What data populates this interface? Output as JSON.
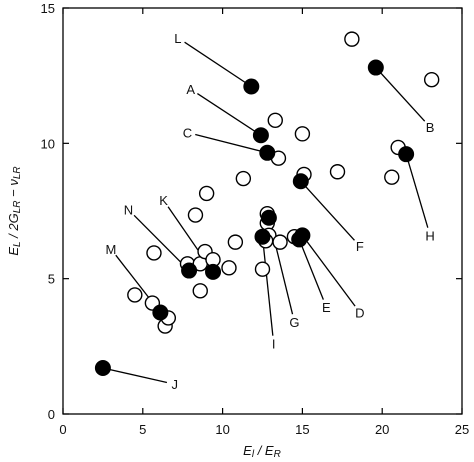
{
  "chart_data": {
    "type": "scatter",
    "xlabel": "E_l / E_R",
    "ylabel": "E_L / 2G_LR − ν_LR",
    "xlim": [
      0,
      25
    ],
    "ylim": [
      0,
      15
    ],
    "x_ticks": [
      0,
      5,
      10,
      15,
      20,
      25
    ],
    "y_ticks": [
      0,
      5,
      10,
      15
    ],
    "x_tick_labels": [
      "0",
      "5",
      "10",
      "15",
      "20",
      "25"
    ],
    "y_tick_labels": [
      "0",
      "5",
      "10",
      "15"
    ],
    "grid": false,
    "series": [
      {
        "marker": "open-circle",
        "points": [
          {
            "x": 4.5,
            "y": 4.4
          },
          {
            "x": 5.6,
            "y": 4.1
          },
          {
            "x": 6.4,
            "y": 3.25
          },
          {
            "x": 6.6,
            "y": 3.55
          },
          {
            "x": 5.7,
            "y": 5.95
          },
          {
            "x": 7.8,
            "y": 5.55
          },
          {
            "x": 8.6,
            "y": 4.55
          },
          {
            "x": 8.3,
            "y": 7.35
          },
          {
            "x": 9.0,
            "y": 8.15
          },
          {
            "x": 8.6,
            "y": 5.55
          },
          {
            "x": 8.9,
            "y": 6.0
          },
          {
            "x": 9.4,
            "y": 5.7
          },
          {
            "x": 10.4,
            "y": 5.4
          },
          {
            "x": 10.8,
            "y": 6.35
          },
          {
            "x": 11.3,
            "y": 8.7
          },
          {
            "x": 12.5,
            "y": 5.35
          },
          {
            "x": 12.8,
            "y": 7.4
          },
          {
            "x": 12.8,
            "y": 7.05
          },
          {
            "x": 12.9,
            "y": 6.6
          },
          {
            "x": 12.7,
            "y": 6.4
          },
          {
            "x": 13.5,
            "y": 9.45
          },
          {
            "x": 13.3,
            "y": 10.85
          },
          {
            "x": 15.0,
            "y": 10.35
          },
          {
            "x": 15.1,
            "y": 8.85
          },
          {
            "x": 13.6,
            "y": 6.35
          },
          {
            "x": 14.5,
            "y": 6.55
          },
          {
            "x": 17.2,
            "y": 8.95
          },
          {
            "x": 18.1,
            "y": 13.85
          },
          {
            "x": 20.6,
            "y": 8.75
          },
          {
            "x": 21.0,
            "y": 9.85
          },
          {
            "x": 23.1,
            "y": 12.35
          }
        ]
      },
      {
        "marker": "filled-circle",
        "points": [
          {
            "x": 2.5,
            "y": 1.7,
            "label": "J"
          },
          {
            "x": 6.1,
            "y": 3.75,
            "label": "M"
          },
          {
            "x": 7.9,
            "y": 5.3,
            "label": "N"
          },
          {
            "x": 9.4,
            "y": 5.25,
            "label": "K"
          },
          {
            "x": 11.8,
            "y": 12.1,
            "label": "L"
          },
          {
            "x": 12.4,
            "y": 10.3,
            "label": "A"
          },
          {
            "x": 12.8,
            "y": 9.65,
            "label": "C"
          },
          {
            "x": 12.5,
            "y": 6.55,
            "label": "I"
          },
          {
            "x": 12.9,
            "y": 7.25,
            "label": "G"
          },
          {
            "x": 14.8,
            "y": 6.45,
            "label": "E"
          },
          {
            "x": 15.0,
            "y": 6.6,
            "label": "D"
          },
          {
            "x": 14.9,
            "y": 8.6,
            "label": "F"
          },
          {
            "x": 19.6,
            "y": 12.8,
            "label": "B"
          },
          {
            "x": 21.5,
            "y": 9.6,
            "label": "H"
          }
        ]
      }
    ],
    "annotations": [
      {
        "text": "L",
        "anchor_x": 11.8,
        "anchor_y": 12.1,
        "text_x": 7.2,
        "text_y": 13.9
      },
      {
        "text": "A",
        "anchor_x": 12.4,
        "anchor_y": 10.3,
        "text_x": 8.0,
        "text_y": 12.0
      },
      {
        "text": "C",
        "anchor_x": 12.8,
        "anchor_y": 9.65,
        "text_x": 7.8,
        "text_y": 10.4
      },
      {
        "text": "K",
        "anchor_x": 9.4,
        "anchor_y": 5.25,
        "text_x": 6.3,
        "text_y": 7.9
      },
      {
        "text": "N",
        "anchor_x": 7.9,
        "anchor_y": 5.3,
        "text_x": 4.1,
        "text_y": 7.55
      },
      {
        "text": "M",
        "anchor_x": 6.1,
        "anchor_y": 3.75,
        "text_x": 3.0,
        "text_y": 6.1
      },
      {
        "text": "J",
        "anchor_x": 2.5,
        "anchor_y": 1.7,
        "text_x": 7.0,
        "text_y": 1.1
      },
      {
        "text": "I",
        "anchor_x": 12.5,
        "anchor_y": 6.55,
        "text_x": 13.2,
        "text_y": 2.6
      },
      {
        "text": "G",
        "anchor_x": 12.9,
        "anchor_y": 7.25,
        "text_x": 14.5,
        "text_y": 3.4
      },
      {
        "text": "E",
        "anchor_x": 14.8,
        "anchor_y": 6.45,
        "text_x": 16.5,
        "text_y": 3.95
      },
      {
        "text": "D",
        "anchor_x": 15.0,
        "anchor_y": 6.6,
        "text_x": 18.6,
        "text_y": 3.75
      },
      {
        "text": "F",
        "anchor_x": 14.9,
        "anchor_y": 8.6,
        "text_x": 18.6,
        "text_y": 6.2
      },
      {
        "text": "B",
        "anchor_x": 19.6,
        "anchor_y": 12.8,
        "text_x": 23.0,
        "text_y": 10.6
      },
      {
        "text": "H",
        "anchor_x": 21.5,
        "anchor_y": 9.6,
        "text_x": 23.0,
        "text_y": 6.6
      }
    ],
    "colors": {
      "axis": "#000000",
      "marker_filled": "#000000",
      "marker_open_fill": "#ffffff",
      "text": "#111111"
    }
  }
}
